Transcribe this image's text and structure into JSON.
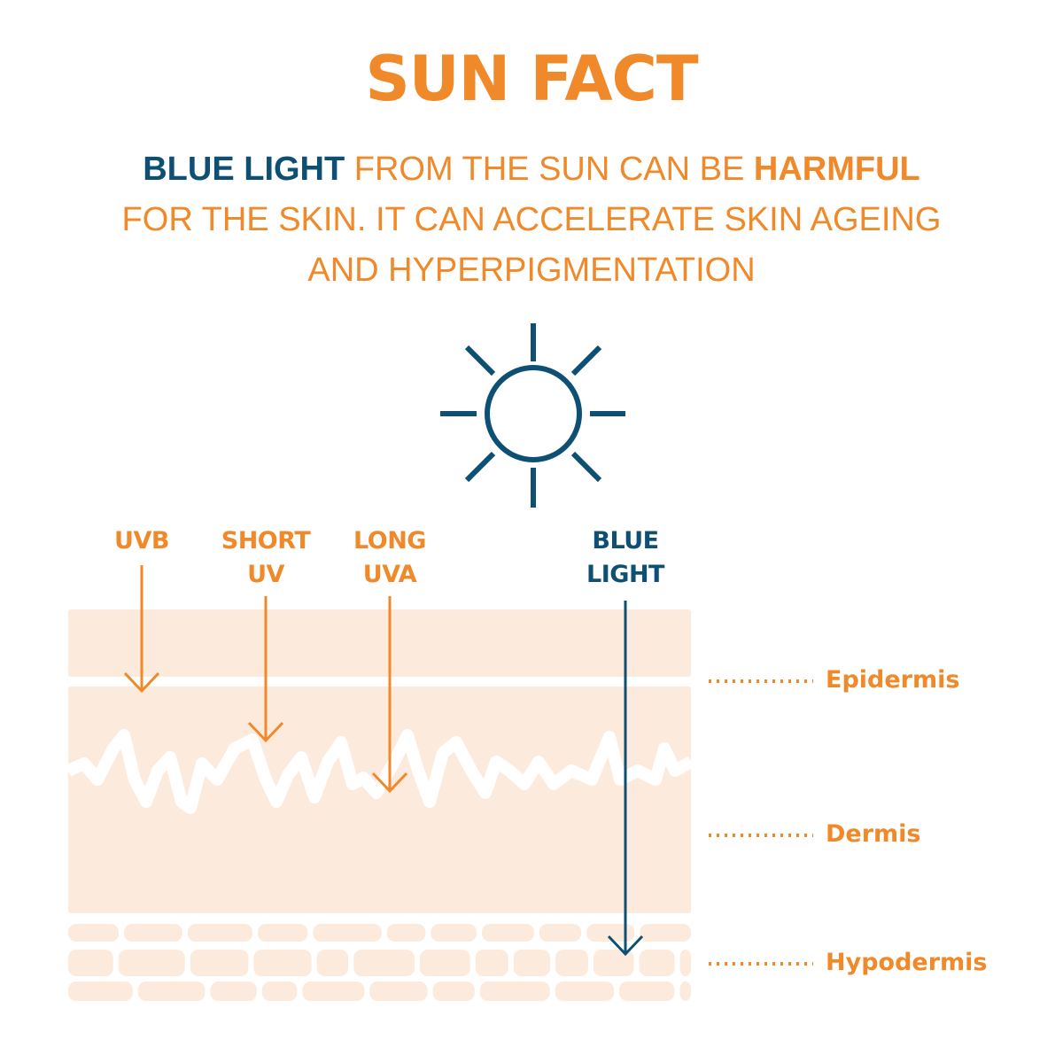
{
  "title": "SUN FACT",
  "subtitle": {
    "part1_emphasis": "BLUE LIGHT",
    "part2": " FROM THE SUN CAN BE ",
    "part3_emphasis": "HARMFUL",
    "line2": "FOR THE SKIN.  IT CAN ACCELERATE SKIN AGEING",
    "line3": "AND HYPERPIGMENTATION"
  },
  "colors": {
    "orange": "#F0892A",
    "blue": "#0E5073",
    "skin": "#FCEBDD"
  },
  "icon": "sun-icon",
  "rays": [
    {
      "line1": "UVB",
      "line2": "",
      "color": "#F0892A",
      "penetrates_to": "Epidermis"
    },
    {
      "line1": "SHORT",
      "line2": "UV",
      "color": "#F0892A",
      "penetrates_to": "Dermis (upper)"
    },
    {
      "line1": "LONG",
      "line2": "UVA",
      "color": "#F0892A",
      "penetrates_to": "Dermis"
    },
    {
      "line1": "BLUE",
      "line2": "LIGHT",
      "color": "#0E5073",
      "penetrates_to": "Hypodermis"
    }
  ],
  "layers": [
    "Epidermis",
    "Dermis",
    "Hypodermis"
  ]
}
